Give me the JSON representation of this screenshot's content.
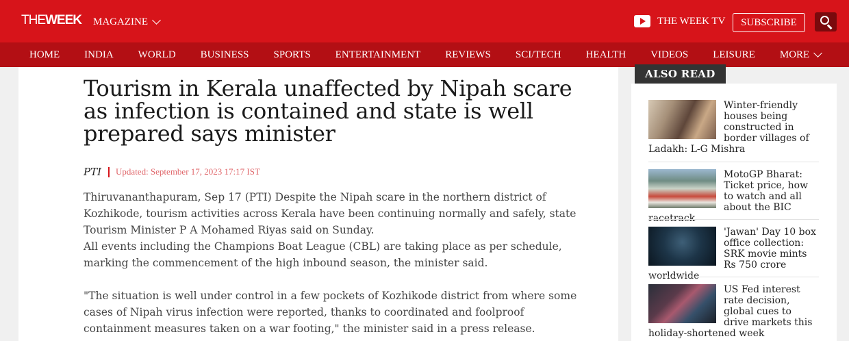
{
  "header": {
    "logo_part1": "THE",
    "logo_part2": "WEEK",
    "magazine_label": "MAGAZINE",
    "tv_label": "THE WEEK TV",
    "subscribe_label": "SUBSCRIBE",
    "brand_color": "#d7141a",
    "nav_color": "#b30f14"
  },
  "nav": {
    "items": [
      "HOME",
      "INDIA",
      "WORLD",
      "BUSINESS",
      "SPORTS",
      "ENTERTAINMENT",
      "REVIEWS",
      "SCI/TECH",
      "HEALTH",
      "VIDEOS",
      "LEISURE",
      "MORE"
    ]
  },
  "article": {
    "headline": "Tourism in Kerala unaffected by Nipah scare as infection is contained and state is well prepared says minister",
    "author": "PTI",
    "updated": "Updated: September 17, 2023 17:17 IST",
    "p1": "Thiruvananthapuram, Sep 17 (PTI) Despite the Nipah scare in the northern district of Kozhikode, tourism activities across Kerala have been continuing normally and safely, state Tourism Minister P A Mohamed Riyas said on Sunday.",
    "p2": "All events including the Champions Boat League (CBL) are taking place as per schedule, marking the commencement of the high inbound season, the minister said.",
    "p3": "\"The situation is well under control in a few pockets of Kozhikode district from where some cases of Nipah virus infection were reported, thanks to coordinated and foolproof containment measures taken on a war footing,\" the minister said in a press release."
  },
  "sidebar": {
    "heading": "ALSO READ",
    "items": [
      {
        "title": "Winter-friendly houses being constructed in border villages of Ladakh: L-G Mishra"
      },
      {
        "title": "MotoGP Bharat: Ticket price, how to watch and all about the BIC racetrack"
      },
      {
        "title": "'Jawan' Day 10 box office collection: SRK movie mints Rs 750 crore worldwide"
      },
      {
        "title": "US Fed interest rate decision, global cues to drive markets this holiday-shortened week"
      }
    ]
  }
}
